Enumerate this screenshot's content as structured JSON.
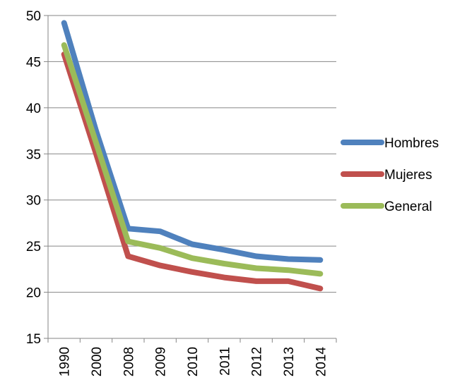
{
  "chart_data": {
    "type": "line",
    "categories": [
      "1990",
      "2000",
      "2008",
      "2009",
      "2010",
      "2011",
      "2012",
      "2013",
      "2014"
    ],
    "series": [
      {
        "name": "Hombres",
        "color": "#4F81BD",
        "values": [
          49.2,
          37.5,
          26.9,
          26.6,
          25.2,
          24.6,
          23.9,
          23.6,
          23.5
        ]
      },
      {
        "name": "Mujeres",
        "color": "#C0504D",
        "values": [
          45.8,
          35.0,
          23.9,
          22.9,
          22.2,
          21.6,
          21.2,
          21.2,
          20.4
        ]
      },
      {
        "name": "General",
        "color": "#9BBB59",
        "values": [
          46.8,
          36.2,
          25.5,
          24.8,
          23.7,
          23.1,
          22.6,
          22.4,
          22.0
        ]
      }
    ],
    "ylim": [
      15,
      50
    ],
    "yticks": [
      "15",
      "20",
      "25",
      "30",
      "35",
      "40",
      "45",
      "50"
    ],
    "grid": true,
    "legend_position": "right"
  }
}
